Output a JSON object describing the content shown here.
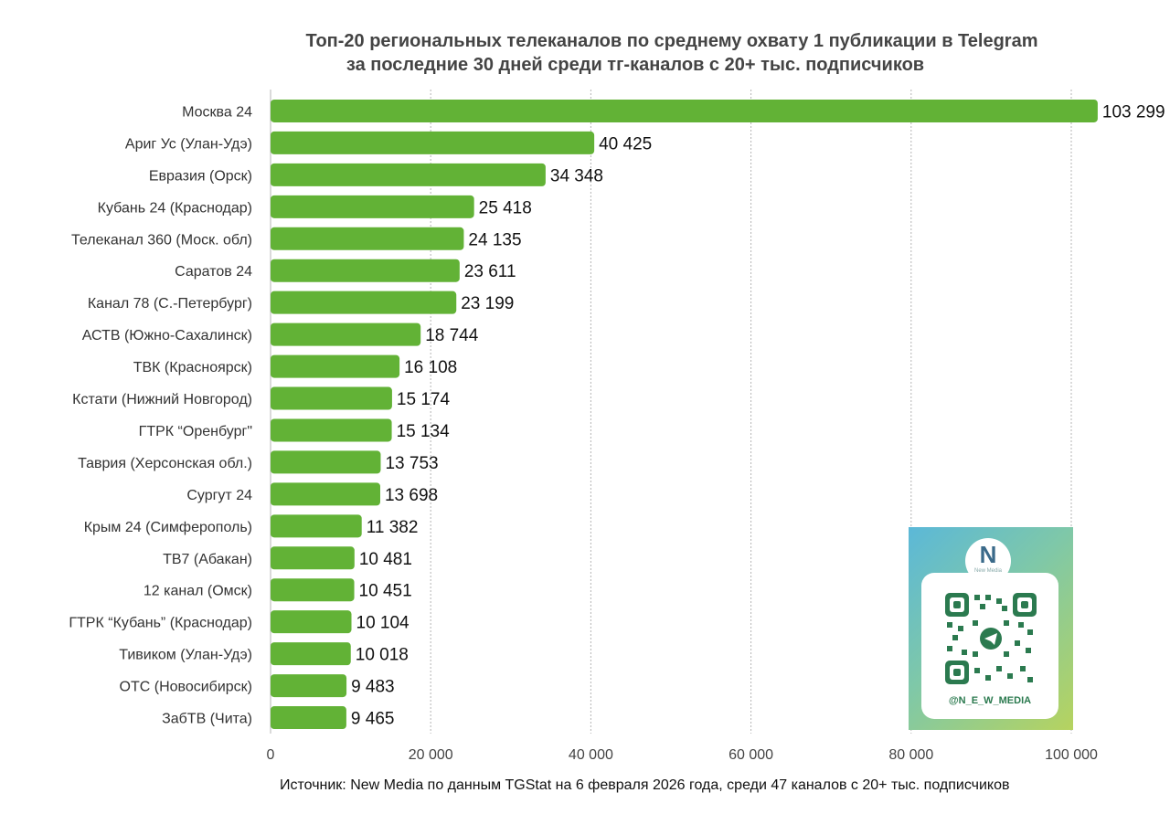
{
  "chart_data": {
    "type": "bar",
    "orientation": "horizontal",
    "title": "Топ-20 региональных телеканалов по среднему охвату 1 публикации в Telegram",
    "subtitle": "за последние 30 дней среди тг-каналов с 20+ тыс. подписчиков",
    "categories": [
      "Москва 24",
      "Ариг Ус (Улан-Удэ)",
      "Евразия (Орск)",
      "Кубань 24 (Краснодар)",
      "Телеканал 360 (Моск. обл)",
      "Саратов 24",
      "Канал 78 (С.-Петербург)",
      "АСТВ (Южно-Сахалинск)",
      "ТВК (Красноярск)",
      "Кстати (Нижний Новгород)",
      "ГТРК “Оренбург\"",
      "Таврия (Херсонская обл.)",
      "Сургут 24",
      "Крым 24 (Симферополь)",
      "ТВ7 (Абакан)",
      "12 канал (Омск)",
      "ГТРК “Кубань” (Краснодар)",
      "Тивиком (Улан-Удэ)",
      "ОТС (Новосибирск)",
      "ЗабТВ (Чита)"
    ],
    "values": [
      103299,
      40425,
      34348,
      25418,
      24135,
      23611,
      23199,
      18744,
      16108,
      15174,
      15134,
      13753,
      13698,
      11382,
      10481,
      10451,
      10104,
      10018,
      9483,
      9465
    ],
    "value_labels": [
      "103 299",
      "40 425",
      "34 348",
      "25 418",
      "24 135",
      "23 611",
      "23 199",
      "18 744",
      "16 108",
      "15 174",
      "15 134",
      "13 753",
      "13 698",
      "11 382",
      "10 481",
      "10 451",
      "10 104",
      "10 018",
      "9 483",
      "9 465"
    ],
    "x_ticks": [
      0,
      20000,
      40000,
      60000,
      80000,
      100000
    ],
    "x_tick_labels": [
      "0",
      "20 000",
      "40 000",
      "60 000",
      "80 000",
      "100 000"
    ],
    "xlim": [
      0,
      100000
    ],
    "grid": "vertical dotted",
    "bar_color": "#62b236",
    "legend": "none"
  },
  "source_note": "Источник: New Media по данным TGStat на 6 февраля 2026 года, среди 47 каналов с 20+ тыс. подписчиков",
  "qr_card": {
    "logo_letter": "N",
    "logo_text": "New Media",
    "handle": "@N_E_W_MEDIA",
    "icon": "telegram-icon",
    "accent": "#2b7a4f"
  }
}
